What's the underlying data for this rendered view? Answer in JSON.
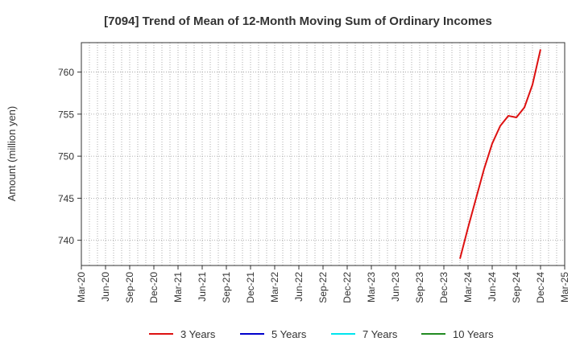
{
  "chart_data": {
    "type": "line",
    "title": "[7094]  Trend of Mean of 12-Month Moving Sum of Ordinary Incomes",
    "xlabel": "",
    "ylabel": "Amount (million yen)",
    "x_tick_labels": [
      "Mar-20",
      "Jun-20",
      "Sep-20",
      "Dec-20",
      "Mar-21",
      "Jun-21",
      "Sep-21",
      "Dec-21",
      "Mar-22",
      "Jun-22",
      "Sep-22",
      "Dec-22",
      "Mar-23",
      "Jun-23",
      "Sep-23",
      "Dec-23",
      "Mar-24",
      "Jun-24",
      "Sep-24",
      "Dec-24",
      "Mar-25"
    ],
    "y_ticks": [
      740,
      745,
      750,
      755,
      760
    ],
    "ylim": [
      737,
      763.5
    ],
    "xlim": [
      "2020-03",
      "2025-03"
    ],
    "grid": true,
    "legend_position": "bottom",
    "series": [
      {
        "name": "3 Years",
        "color": "#dd1111",
        "points": [
          [
            "2024-02",
            737.8
          ],
          [
            "2024-03",
            741.5
          ],
          [
            "2024-04",
            745.0
          ],
          [
            "2024-05",
            748.5
          ],
          [
            "2024-06",
            751.5
          ],
          [
            "2024-07",
            753.6
          ],
          [
            "2024-08",
            754.8
          ],
          [
            "2024-09",
            754.6
          ],
          [
            "2024-10",
            755.8
          ],
          [
            "2024-11",
            758.5
          ],
          [
            "2024-12",
            762.7
          ]
        ]
      },
      {
        "name": "5 Years",
        "color": "#0000cc",
        "points": []
      },
      {
        "name": "7 Years",
        "color": "#00e5ee",
        "points": []
      },
      {
        "name": "10 Years",
        "color": "#228b22",
        "points": []
      }
    ]
  }
}
